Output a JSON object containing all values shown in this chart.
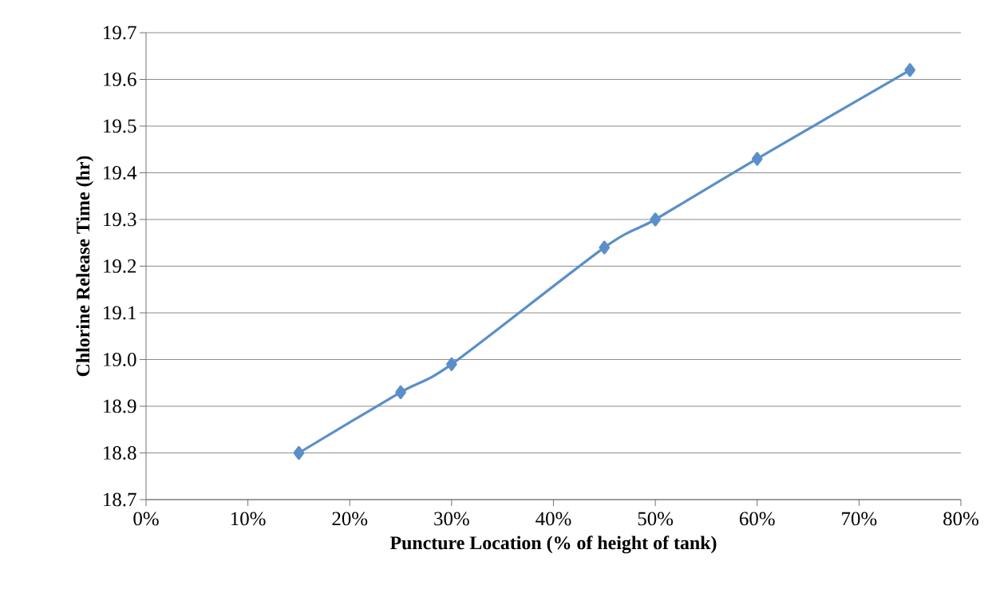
{
  "chart_data": {
    "type": "line",
    "xlabel": "Puncture Location (% of height of tank)",
    "ylabel": "Chlorine Release Time (hr)",
    "x": [
      15,
      25,
      30,
      45,
      50,
      60,
      75
    ],
    "series": [
      {
        "color": "#5b8fc9",
        "values": [
          18.8,
          18.93,
          18.99,
          19.24,
          19.3,
          19.43,
          19.62
        ]
      }
    ],
    "xlim": [
      0,
      80
    ],
    "xticks": [
      {
        "value": 0,
        "label": "0%"
      },
      {
        "value": 10,
        "label": "10%"
      },
      {
        "value": 20,
        "label": "20%"
      },
      {
        "value": 30,
        "label": "30%"
      },
      {
        "value": 40,
        "label": "40%"
      },
      {
        "value": 50,
        "label": "50%"
      },
      {
        "value": 60,
        "label": "60%"
      },
      {
        "value": 70,
        "label": "70%"
      },
      {
        "value": 80,
        "label": "80%"
      }
    ],
    "ylim": [
      18.7,
      19.7
    ],
    "yticks": [
      {
        "value": 18.7,
        "label": "18.7"
      },
      {
        "value": 18.8,
        "label": "18.8"
      },
      {
        "value": 18.9,
        "label": "18.9"
      },
      {
        "value": 19.0,
        "label": "19.0"
      },
      {
        "value": 19.1,
        "label": "19.1"
      },
      {
        "value": 19.2,
        "label": "19.2"
      },
      {
        "value": 19.3,
        "label": "19.3"
      },
      {
        "value": 19.4,
        "label": "19.4"
      },
      {
        "value": 19.5,
        "label": "19.5"
      },
      {
        "value": 19.6,
        "label": "19.6"
      },
      {
        "value": 19.7,
        "label": "19.7"
      }
    ],
    "grid": "y",
    "marker": "diamond",
    "line_style": "solid",
    "legend": false
  }
}
